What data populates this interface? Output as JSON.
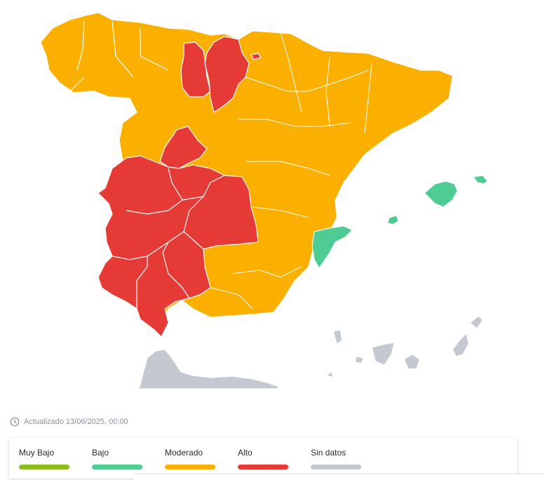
{
  "map": {
    "colors": {
      "muy_bajo": "#8cbd1f",
      "bajo": "#4fcc93",
      "moderado": "#fbb000",
      "alto": "#e63a37",
      "sin_datos": "#c3c8d1"
    },
    "regions": [
      {
        "id": "galicia-asturias-cantabria",
        "level": "moderado"
      },
      {
        "id": "leon-zamora-salamanca",
        "level": "moderado"
      },
      {
        "id": "palencia",
        "level": "alto"
      },
      {
        "id": "burgos",
        "level": "alto"
      },
      {
        "id": "navarra-pais-vasco-aragon-catalunya",
        "level": "moderado"
      },
      {
        "id": "valladolid-segovia-madrid",
        "level": "moderado"
      },
      {
        "id": "avila",
        "level": "alto"
      },
      {
        "id": "castilla-la-mancha-east",
        "level": "moderado"
      },
      {
        "id": "extremadura",
        "level": "alto"
      },
      {
        "id": "toledo-ciudad-real",
        "level": "alto"
      },
      {
        "id": "andalucia-west",
        "level": "alto"
      },
      {
        "id": "andalucia-east",
        "level": "moderado"
      },
      {
        "id": "alicante",
        "level": "bajo"
      },
      {
        "id": "baleares",
        "level": "bajo"
      },
      {
        "id": "canarias",
        "level": "sin_datos"
      },
      {
        "id": "marruecos-ceuta",
        "level": "sin_datos"
      }
    ]
  },
  "updated": {
    "icon": "clock-icon",
    "text": "Actualizado 13/06/2025, 00:00"
  },
  "legend": {
    "items": [
      {
        "label": "Muy Bajo",
        "color": "#8cbd1f"
      },
      {
        "label": "Bajo",
        "color": "#4fcc93"
      },
      {
        "label": "Moderado",
        "color": "#fbb000"
      },
      {
        "label": "Alto",
        "color": "#e63a37"
      },
      {
        "label": "Sin datos",
        "color": "#c3c8d1"
      }
    ]
  }
}
